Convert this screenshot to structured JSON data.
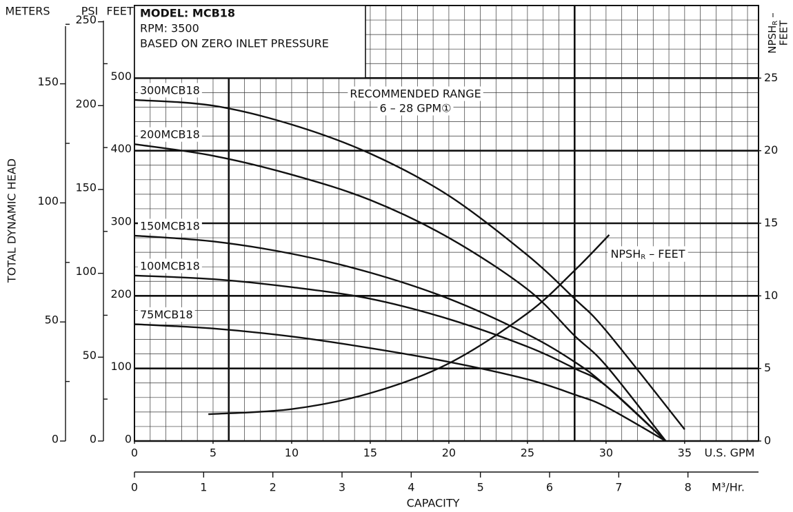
{
  "chart_data": {
    "type": "line",
    "info": {
      "model": "MODEL: MCB18",
      "rpm": "RPM: 3500",
      "note": "BASED ON ZERO INLET PRESSURE"
    },
    "recommended": {
      "title": "RECOMMENDED RANGE",
      "range_label": "6 – 28 GPM①",
      "range": [
        6,
        28
      ]
    },
    "x_label": "U.S. GPM",
    "xlim": [
      0,
      39.7
    ],
    "xticks": [
      0,
      5,
      10,
      15,
      20,
      25,
      30,
      35
    ],
    "x_minor_step": 1,
    "x2_label": "M³/Hr.",
    "x2lim": [
      0,
      9.02
    ],
    "x2ticks": [
      0,
      1,
      2,
      3,
      4,
      5,
      6,
      7,
      8
    ],
    "x_title": "CAPACITY",
    "y_title": "TOTAL DYNAMIC HEAD",
    "y_label": "FEET",
    "ylim": [
      0,
      600
    ],
    "yticks": [
      0,
      100,
      200,
      300,
      400,
      500
    ],
    "y_minor_step": 20,
    "psi_label": "PSI",
    "psi_lim": [
      0,
      259.7
    ],
    "psi_ticks": [
      0,
      50,
      100,
      150,
      200,
      250
    ],
    "psi_minor_ticks": [
      25,
      75,
      125,
      175,
      225
    ],
    "meters_label": "METERS",
    "meters_lim": [
      0,
      182.88
    ],
    "meters_ticks": [
      0,
      50,
      100,
      150
    ],
    "meters_minor_ticks": [
      25,
      75,
      125,
      175
    ],
    "y2_title": {
      "main": "NPSH",
      "sub": "R",
      "rest": "–",
      "line2": "FEET"
    },
    "y2lim": [
      0,
      30
    ],
    "y2ticks": [
      0,
      5,
      10,
      15,
      20,
      25
    ],
    "npsh_label": {
      "main": "NPSH",
      "sub": "R",
      "rest": "– FEET"
    },
    "series": [
      {
        "name": "300MCB18",
        "color": "#111111",
        "x": [
          0,
          5,
          10,
          15,
          20,
          25,
          28,
          30,
          35
        ],
        "values": [
          470,
          462,
          436,
          396,
          338,
          256,
          196,
          152,
          16
        ]
      },
      {
        "name": "200MCB18",
        "color": "#111111",
        "x": [
          0,
          5,
          10,
          15,
          20,
          25,
          28,
          30,
          33.8
        ],
        "values": [
          409,
          393,
          367,
          332,
          280,
          209,
          145,
          104,
          0
        ]
      },
      {
        "name": "150MCB18",
        "color": "#111111",
        "x": [
          0,
          5,
          10,
          15,
          20,
          25,
          28,
          30,
          33.8
        ],
        "values": [
          283,
          275,
          258,
          232,
          196,
          147,
          109,
          76,
          0
        ]
      },
      {
        "name": "100MCB18",
        "color": "#111111",
        "x": [
          0,
          5,
          10,
          15,
          20,
          25,
          28,
          30,
          33.8
        ],
        "values": [
          228,
          223,
          212,
          196,
          168,
          130,
          100,
          76,
          0
        ]
      },
      {
        "name": "75MCB18",
        "color": "#111111",
        "x": [
          0,
          5,
          10,
          15,
          20,
          25,
          28,
          30,
          33.8
        ],
        "values": [
          161,
          155,
          144,
          128,
          109,
          85,
          64,
          47,
          0
        ]
      },
      {
        "name": "NPSHR",
        "axis": "y2",
        "color": "#111111",
        "x": [
          4.7,
          10,
          15,
          20,
          25,
          28,
          30.2
        ],
        "values": [
          1.85,
          2.2,
          3.3,
          5.35,
          8.8,
          11.75,
          14.2
        ]
      }
    ]
  }
}
